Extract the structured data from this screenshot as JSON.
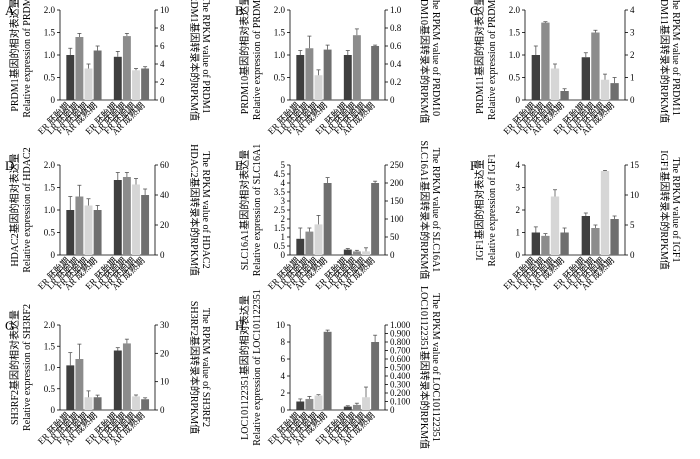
{
  "chart_data": [
    {
      "type": "bar",
      "panel_letter": "A",
      "ylabel_left_cn": "PRDM1基因的相对表达量",
      "ylabel_left_en": "Relative expression of PRDM1",
      "ylabel_right_cn": "PRDM1基因转录本的RPKM值",
      "ylabel_right_en": "The RPKM value of PRDM1",
      "ylim_left": [
        0,
        2.0
      ],
      "yticks_left": [
        "0",
        "0.5",
        "1.0",
        "1.5",
        "2.0"
      ],
      "ylim_right": [
        0,
        10
      ],
      "yticks_right": [
        "0",
        "2",
        "4",
        "6",
        "8",
        "10"
      ],
      "categories": [
        "ER 胚胎期",
        "LR 胚胎期",
        "FR 胚胎期",
        "AR 成熟期"
      ],
      "series": [
        {
          "axis": "left",
          "values": [
            1.0,
            1.4,
            0.7,
            1.1
          ],
          "errors": [
            0.15,
            0.08,
            0.1,
            0.1
          ]
        },
        {
          "axis": "right",
          "values": [
            4.8,
            7.1,
            3.3,
            3.5
          ],
          "errors": [
            0.6,
            0.3,
            0.2,
            0.2
          ]
        }
      ]
    },
    {
      "type": "bar",
      "panel_letter": "B",
      "ylabel_left_cn": "PRDM10基因的相对表达量",
      "ylabel_left_en": "Relative expression of PRDM10",
      "ylabel_right_cn": "PRDM10基因转录本的RPKM值",
      "ylabel_right_en": "The RPKM value of PRDM10",
      "ylim_left": [
        0,
        2.0
      ],
      "yticks_left": [
        "0",
        "0.5",
        "1.0",
        "1.5",
        "2.0"
      ],
      "ylim_right": [
        0,
        1.0
      ],
      "yticks_right": [
        "0",
        "0.2",
        "0.4",
        "0.6",
        "0.8",
        "1.0"
      ],
      "categories": [
        "ER 胚胎期",
        "LR 胚胎期",
        "FR 胚胎期",
        "AR 成熟期"
      ],
      "series": [
        {
          "axis": "left",
          "values": [
            1.0,
            1.15,
            0.55,
            1.12
          ],
          "errors": [
            0.1,
            0.27,
            0.12,
            0.1
          ]
        },
        {
          "axis": "right",
          "values": [
            0.5,
            0.72,
            0.0,
            0.6
          ],
          "errors": [
            0.05,
            0.07,
            0.0,
            0.01
          ]
        }
      ]
    },
    {
      "type": "bar",
      "panel_letter": "C",
      "ylabel_left_cn": "PRDM11基因的相对表达量",
      "ylabel_left_en": "Relative expression of PRDM11",
      "ylabel_right_cn": "PRDM11基因转录本的RPKM值",
      "ylabel_right_en": "The RPKM value of PRDM11",
      "ylim_left": [
        0,
        2.0
      ],
      "yticks_left": [
        "0",
        "0.5",
        "1.0",
        "1.5",
        "2.0"
      ],
      "ylim_right": [
        0,
        4
      ],
      "yticks_right": [
        "0",
        "1",
        "2",
        "3",
        "4"
      ],
      "categories": [
        "ER 胚胎期",
        "LR 胚胎期",
        "FR 胚胎期",
        "AR 成熟期"
      ],
      "series": [
        {
          "axis": "left",
          "values": [
            1.0,
            1.72,
            0.7,
            0.2
          ],
          "errors": [
            0.2,
            0.02,
            0.1,
            0.05
          ]
        },
        {
          "axis": "right",
          "values": [
            1.9,
            3.0,
            0.9,
            0.75
          ],
          "errors": [
            0.2,
            0.1,
            0.25,
            0.25
          ]
        }
      ]
    },
    {
      "type": "bar",
      "panel_letter": "D",
      "ylabel_left_cn": "HDAC2基因的相对表达量",
      "ylabel_left_en": "Relative expression of HDAC2",
      "ylabel_right_cn": "HDAC2基因转录本的RPKM值",
      "ylabel_right_en": "The RPKM value of HDAC2",
      "ylim_left": [
        0,
        2.0
      ],
      "yticks_left": [
        "0",
        "0.5",
        "1.0",
        "1.5",
        "2.0"
      ],
      "ylim_right": [
        0,
        60
      ],
      "yticks_right": [
        "0",
        "20",
        "40",
        "60"
      ],
      "categories": [
        "ER 胚胎期",
        "LR 胚胎期",
        "FR 胚胎期",
        "AR 成熟期"
      ],
      "series": [
        {
          "axis": "left",
          "values": [
            1.0,
            1.3,
            1.1,
            1.0
          ],
          "errors": [
            0.3,
            0.25,
            0.15,
            0.1
          ]
        },
        {
          "axis": "right",
          "values": [
            50,
            52,
            47,
            40
          ],
          "errors": [
            5,
            3,
            4,
            4
          ]
        }
      ]
    },
    {
      "type": "bar",
      "panel_letter": "E",
      "ylabel_left_cn": "SLC16A1基因的相对表达量",
      "ylabel_left_en": "Relative expression of SLC16A1",
      "ylabel_right_cn": "SLC16A1基因转录本的RPKM值",
      "ylabel_right_en": "The RPKM value of SLC16A1",
      "ylim_left": [
        0,
        5
      ],
      "yticks_left": [
        "0",
        "0.5",
        "1",
        "1.5",
        "2",
        "2.5",
        "3",
        "3.5",
        "4",
        "4.5",
        "5"
      ],
      "ylim_right": [
        0,
        250
      ],
      "yticks_right": [
        "0",
        "50",
        "100",
        "150",
        "200",
        "250"
      ],
      "categories": [
        "ER 胚胎期",
        "LR 胚胎期",
        "FR 胚胎期",
        "AR 成熟期"
      ],
      "series": [
        {
          "axis": "left",
          "values": [
            0.9,
            1.3,
            1.7,
            4.0
          ],
          "errors": [
            0.6,
            0.2,
            0.5,
            0.3
          ]
        },
        {
          "axis": "right",
          "values": [
            15,
            10,
            10,
            200
          ],
          "errors": [
            3,
            3,
            10,
            5
          ]
        }
      ]
    },
    {
      "type": "bar",
      "panel_letter": "F",
      "ylabel_left_cn": "IGF1基因的相对表达量",
      "ylabel_left_en": "Relative expression of IGF1",
      "ylabel_right_cn": "IGF1基因转录本的RPKM值",
      "ylabel_right_en": "The RPKM value of IGF1",
      "ylim_left": [
        0,
        4
      ],
      "yticks_left": [
        "0",
        "1",
        "2",
        "3",
        "4"
      ],
      "ylim_right": [
        0,
        15
      ],
      "yticks_right": [
        "0",
        "5",
        "10",
        "15"
      ],
      "categories": [
        "ER 胚胎期",
        "LR 胚胎期",
        "FR 胚胎期",
        "AR 成熟期"
      ],
      "series": [
        {
          "axis": "left",
          "values": [
            1.0,
            0.85,
            2.6,
            1.0
          ],
          "errors": [
            0.25,
            0.1,
            0.3,
            0.2
          ]
        },
        {
          "axis": "right",
          "values": [
            6.5,
            4.5,
            14.0,
            6.0
          ],
          "errors": [
            0.5,
            0.5,
            0.1,
            0.5
          ]
        }
      ]
    },
    {
      "type": "bar",
      "panel_letter": "G",
      "ylabel_left_cn": "SH3RF2基因的相对表达量",
      "ylabel_left_en": "Relative expression of SH3RF2",
      "ylabel_right_cn": "SH3RF2基因转录本的RPKM值",
      "ylabel_right_en": "The RPKM value of SH3RF2",
      "ylim_left": [
        0,
        2.0
      ],
      "yticks_left": [
        "0",
        "0.5",
        "1.0",
        "1.5",
        "2.0"
      ],
      "ylim_right": [
        0,
        30
      ],
      "yticks_right": [
        "0",
        "10",
        "20",
        "30"
      ],
      "categories": [
        "ER 胚胎期",
        "LR 胚胎期",
        "FR 胚胎期",
        "AR 成熟期"
      ],
      "series": [
        {
          "axis": "left",
          "values": [
            1.05,
            1.2,
            0.3,
            0.3
          ],
          "errors": [
            0.3,
            0.35,
            0.15,
            0.05
          ]
        },
        {
          "axis": "right",
          "values": [
            21,
            23.5,
            4.8,
            3.8
          ],
          "errors": [
            1.0,
            1.5,
            0.5,
            0.5
          ]
        }
      ]
    },
    {
      "type": "bar",
      "panel_letter": "H",
      "ylabel_left_cn": "LOC101122351基因的相对表达量",
      "ylabel_left_en": "Relative expression of LOC101122351",
      "ylabel_right_cn": "LOC101122351基因转录本的RPKM值",
      "ylabel_right_en": "The RPKM value of LOC101122351",
      "ylim_left": [
        0,
        10
      ],
      "yticks_left": [
        "0",
        "2",
        "4",
        "6",
        "8",
        "10"
      ],
      "ylim_right": [
        0,
        1.0
      ],
      "yticks_right": [
        "0",
        "0.100",
        "0.200",
        "0.300",
        "0.400",
        "0.500",
        "0.600",
        "0.700",
        "0.800",
        "0.900",
        "1.000"
      ],
      "categories": [
        "ER 胚胎期",
        "LR 胚胎期",
        "FR 胚胎期",
        "AR 成熟期"
      ],
      "series": [
        {
          "axis": "left",
          "values": [
            1.0,
            1.3,
            1.7,
            9.2
          ],
          "errors": [
            0.3,
            0.3,
            0.1,
            0.2
          ]
        },
        {
          "axis": "right",
          "values": [
            0.04,
            0.06,
            0.15,
            0.8
          ],
          "errors": [
            0.01,
            0.02,
            0.12,
            0.08
          ]
        }
      ]
    }
  ]
}
